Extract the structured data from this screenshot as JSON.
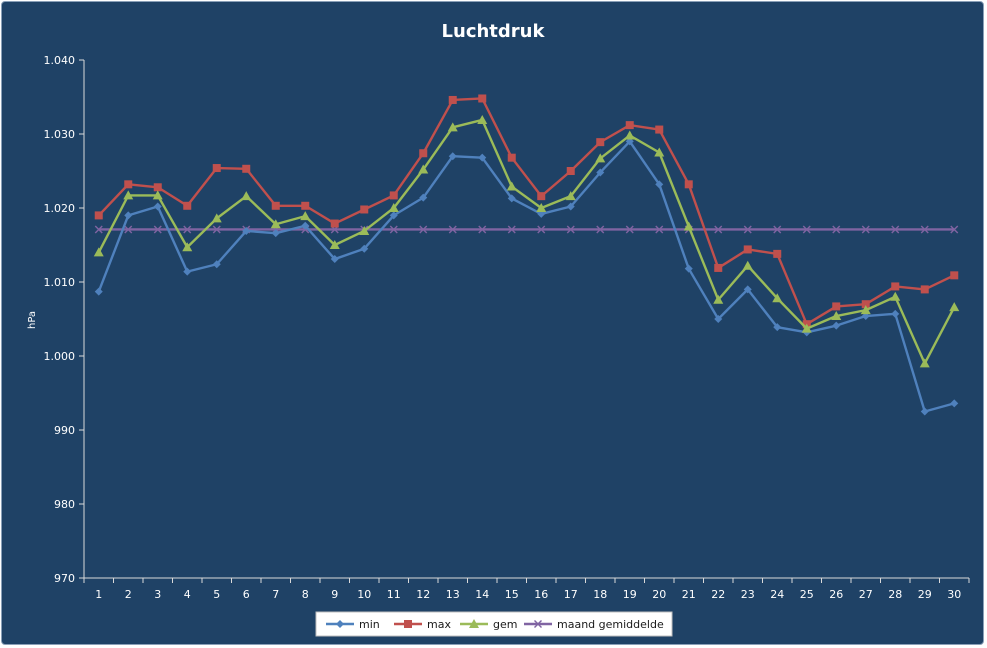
{
  "chart_data": {
    "type": "line",
    "title": "Luchtdruk",
    "xlabel": "",
    "ylabel": "hPa",
    "ylim": [
      970,
      1040
    ],
    "y_ticks": [
      970,
      980,
      990,
      1000,
      1010,
      1020,
      1030,
      1040
    ],
    "y_tick_labels": [
      "970",
      "980",
      "990",
      "1.000",
      "1.010",
      "1.020",
      "1.030",
      "1.040"
    ],
    "categories": [
      "1",
      "2",
      "3",
      "4",
      "5",
      "6",
      "7",
      "8",
      "9",
      "10",
      "11",
      "12",
      "13",
      "14",
      "15",
      "16",
      "17",
      "18",
      "19",
      "20",
      "21",
      "22",
      "23",
      "24",
      "25",
      "26",
      "27",
      "28",
      "29",
      "30"
    ],
    "grid": false,
    "legend_position": "bottom",
    "series": [
      {
        "name": "min",
        "color": "#4f81bd",
        "marker": "diamond",
        "values": [
          1008.7,
          1019.0,
          1020.2,
          1011.4,
          1012.4,
          1016.9,
          1016.6,
          1017.6,
          1013.1,
          1014.5,
          1019.0,
          1021.4,
          1027.0,
          1026.8,
          1021.3,
          1019.2,
          1020.2,
          1024.8,
          1029.0,
          1023.2,
          1011.8,
          1005.0,
          1009.0,
          1003.9,
          1003.2,
          1004.1,
          1005.4,
          1005.7,
          992.5,
          993.6
        ]
      },
      {
        "name": "max",
        "color": "#c0504d",
        "marker": "square",
        "values": [
          1019.0,
          1023.2,
          1022.8,
          1020.3,
          1025.4,
          1025.3,
          1020.3,
          1020.3,
          1017.9,
          1019.8,
          1021.7,
          1027.4,
          1034.6,
          1034.8,
          1026.8,
          1021.6,
          1025.0,
          1028.9,
          1031.2,
          1030.6,
          1023.2,
          1011.9,
          1014.4,
          1013.8,
          1004.3,
          1006.7,
          1007.0,
          1009.4,
          1009.0,
          1010.9
        ]
      },
      {
        "name": "gem",
        "color": "#9bbb59",
        "marker": "triangle",
        "values": [
          1014.0,
          1021.7,
          1021.7,
          1014.7,
          1018.6,
          1021.6,
          1017.8,
          1018.9,
          1015.0,
          1016.9,
          1020.0,
          1025.2,
          1030.9,
          1031.9,
          1022.9,
          1020.0,
          1021.6,
          1026.7,
          1029.8,
          1027.5,
          1017.5,
          1007.6,
          1012.2,
          1007.8,
          1003.7,
          1005.4,
          1006.2,
          1008.0,
          999.0,
          1006.6
        ]
      },
      {
        "name": "maand gemiddelde",
        "color": "#8064a2",
        "marker": "x",
        "values": [
          1017.1,
          1017.1,
          1017.1,
          1017.1,
          1017.1,
          1017.1,
          1017.1,
          1017.1,
          1017.1,
          1017.1,
          1017.1,
          1017.1,
          1017.1,
          1017.1,
          1017.1,
          1017.1,
          1017.1,
          1017.1,
          1017.1,
          1017.1,
          1017.1,
          1017.1,
          1017.1,
          1017.1,
          1017.1,
          1017.1,
          1017.1,
          1017.1,
          1017.1,
          1017.1
        ]
      }
    ]
  }
}
